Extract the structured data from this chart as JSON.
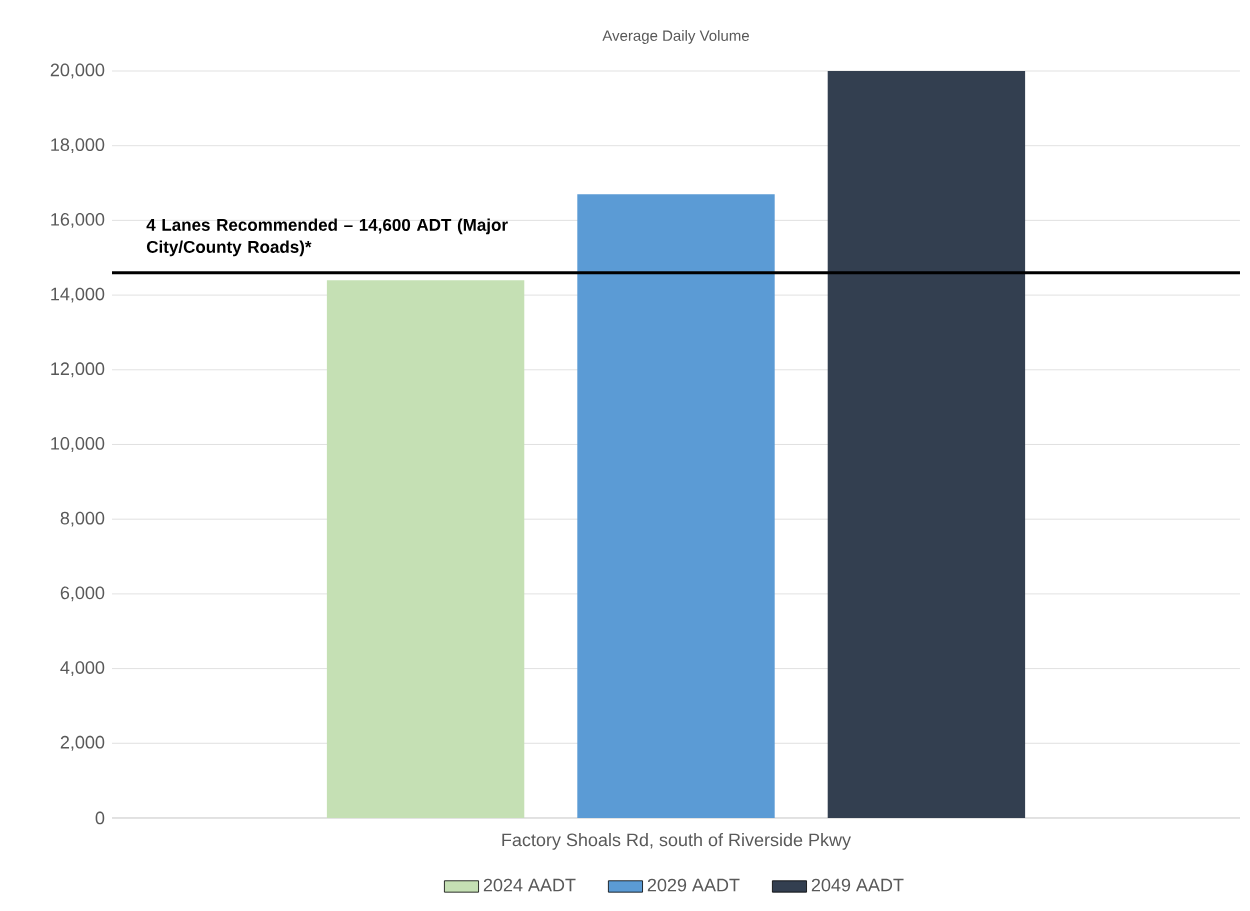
{
  "chart_data": {
    "type": "bar",
    "title": "Average Daily Volume",
    "categories": [
      "Factory Shoals Rd, south of Riverside Pkwy"
    ],
    "series": [
      {
        "name": "2024 AADT",
        "color": "#c5e0b4",
        "values": [
          14400
        ]
      },
      {
        "name": "2029 AADT",
        "color": "#5b9bd5",
        "values": [
          16700
        ]
      },
      {
        "name": "2049 AADT",
        "color": "#333f50",
        "values": [
          20000
        ]
      }
    ],
    "ylim": [
      0,
      20000
    ],
    "yticks": [
      {
        "value": 0,
        "label": "0"
      },
      {
        "value": 2000,
        "label": "2,000"
      },
      {
        "value": 4000,
        "label": "4,000"
      },
      {
        "value": 6000,
        "label": "6,000"
      },
      {
        "value": 8000,
        "label": "8,000"
      },
      {
        "value": 10000,
        "label": "10,000"
      },
      {
        "value": 12000,
        "label": "12,000"
      },
      {
        "value": 14000,
        "label": "14,000"
      },
      {
        "value": 16000,
        "label": "16,000"
      },
      {
        "value": 18000,
        "label": "18,000"
      },
      {
        "value": 20000,
        "label": "20,000"
      }
    ],
    "grid": "y",
    "legend": "bottom",
    "ref_lines": [
      {
        "axis": "y",
        "value": 14600,
        "label": "4 Lanes Recommended – 14,600 ADT (Major City/County Roads)*",
        "color": "#000000"
      }
    ]
  }
}
